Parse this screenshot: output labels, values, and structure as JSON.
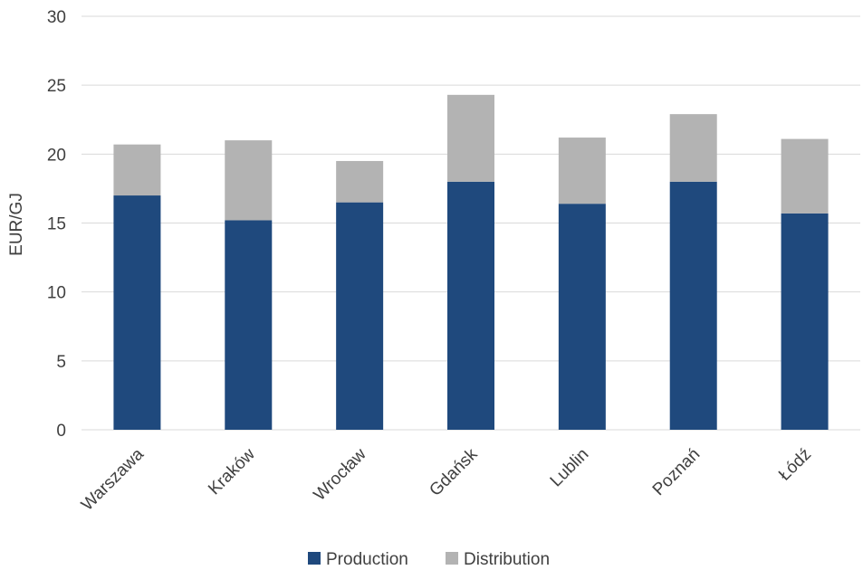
{
  "chart_data": {
    "type": "bar",
    "stacked": true,
    "categories": [
      "Warszawa",
      "Kraków",
      "Wrocław",
      "Gdańsk",
      "Lublin",
      "Poznań",
      "Łódź"
    ],
    "series": [
      {
        "name": "Production",
        "color": "#1f497d",
        "values": [
          17.0,
          15.2,
          16.5,
          18.0,
          16.4,
          18.0,
          15.7
        ]
      },
      {
        "name": "Distribution",
        "color": "#b3b3b3",
        "values": [
          3.7,
          5.8,
          3.0,
          6.3,
          4.8,
          4.9,
          5.4
        ]
      }
    ],
    "ylabel": "EUR/GJ",
    "ylim": [
      0,
      30
    ],
    "yticks": [
      0,
      5,
      10,
      15,
      20,
      25,
      30
    ],
    "grid": true,
    "legend_position": "bottom"
  }
}
